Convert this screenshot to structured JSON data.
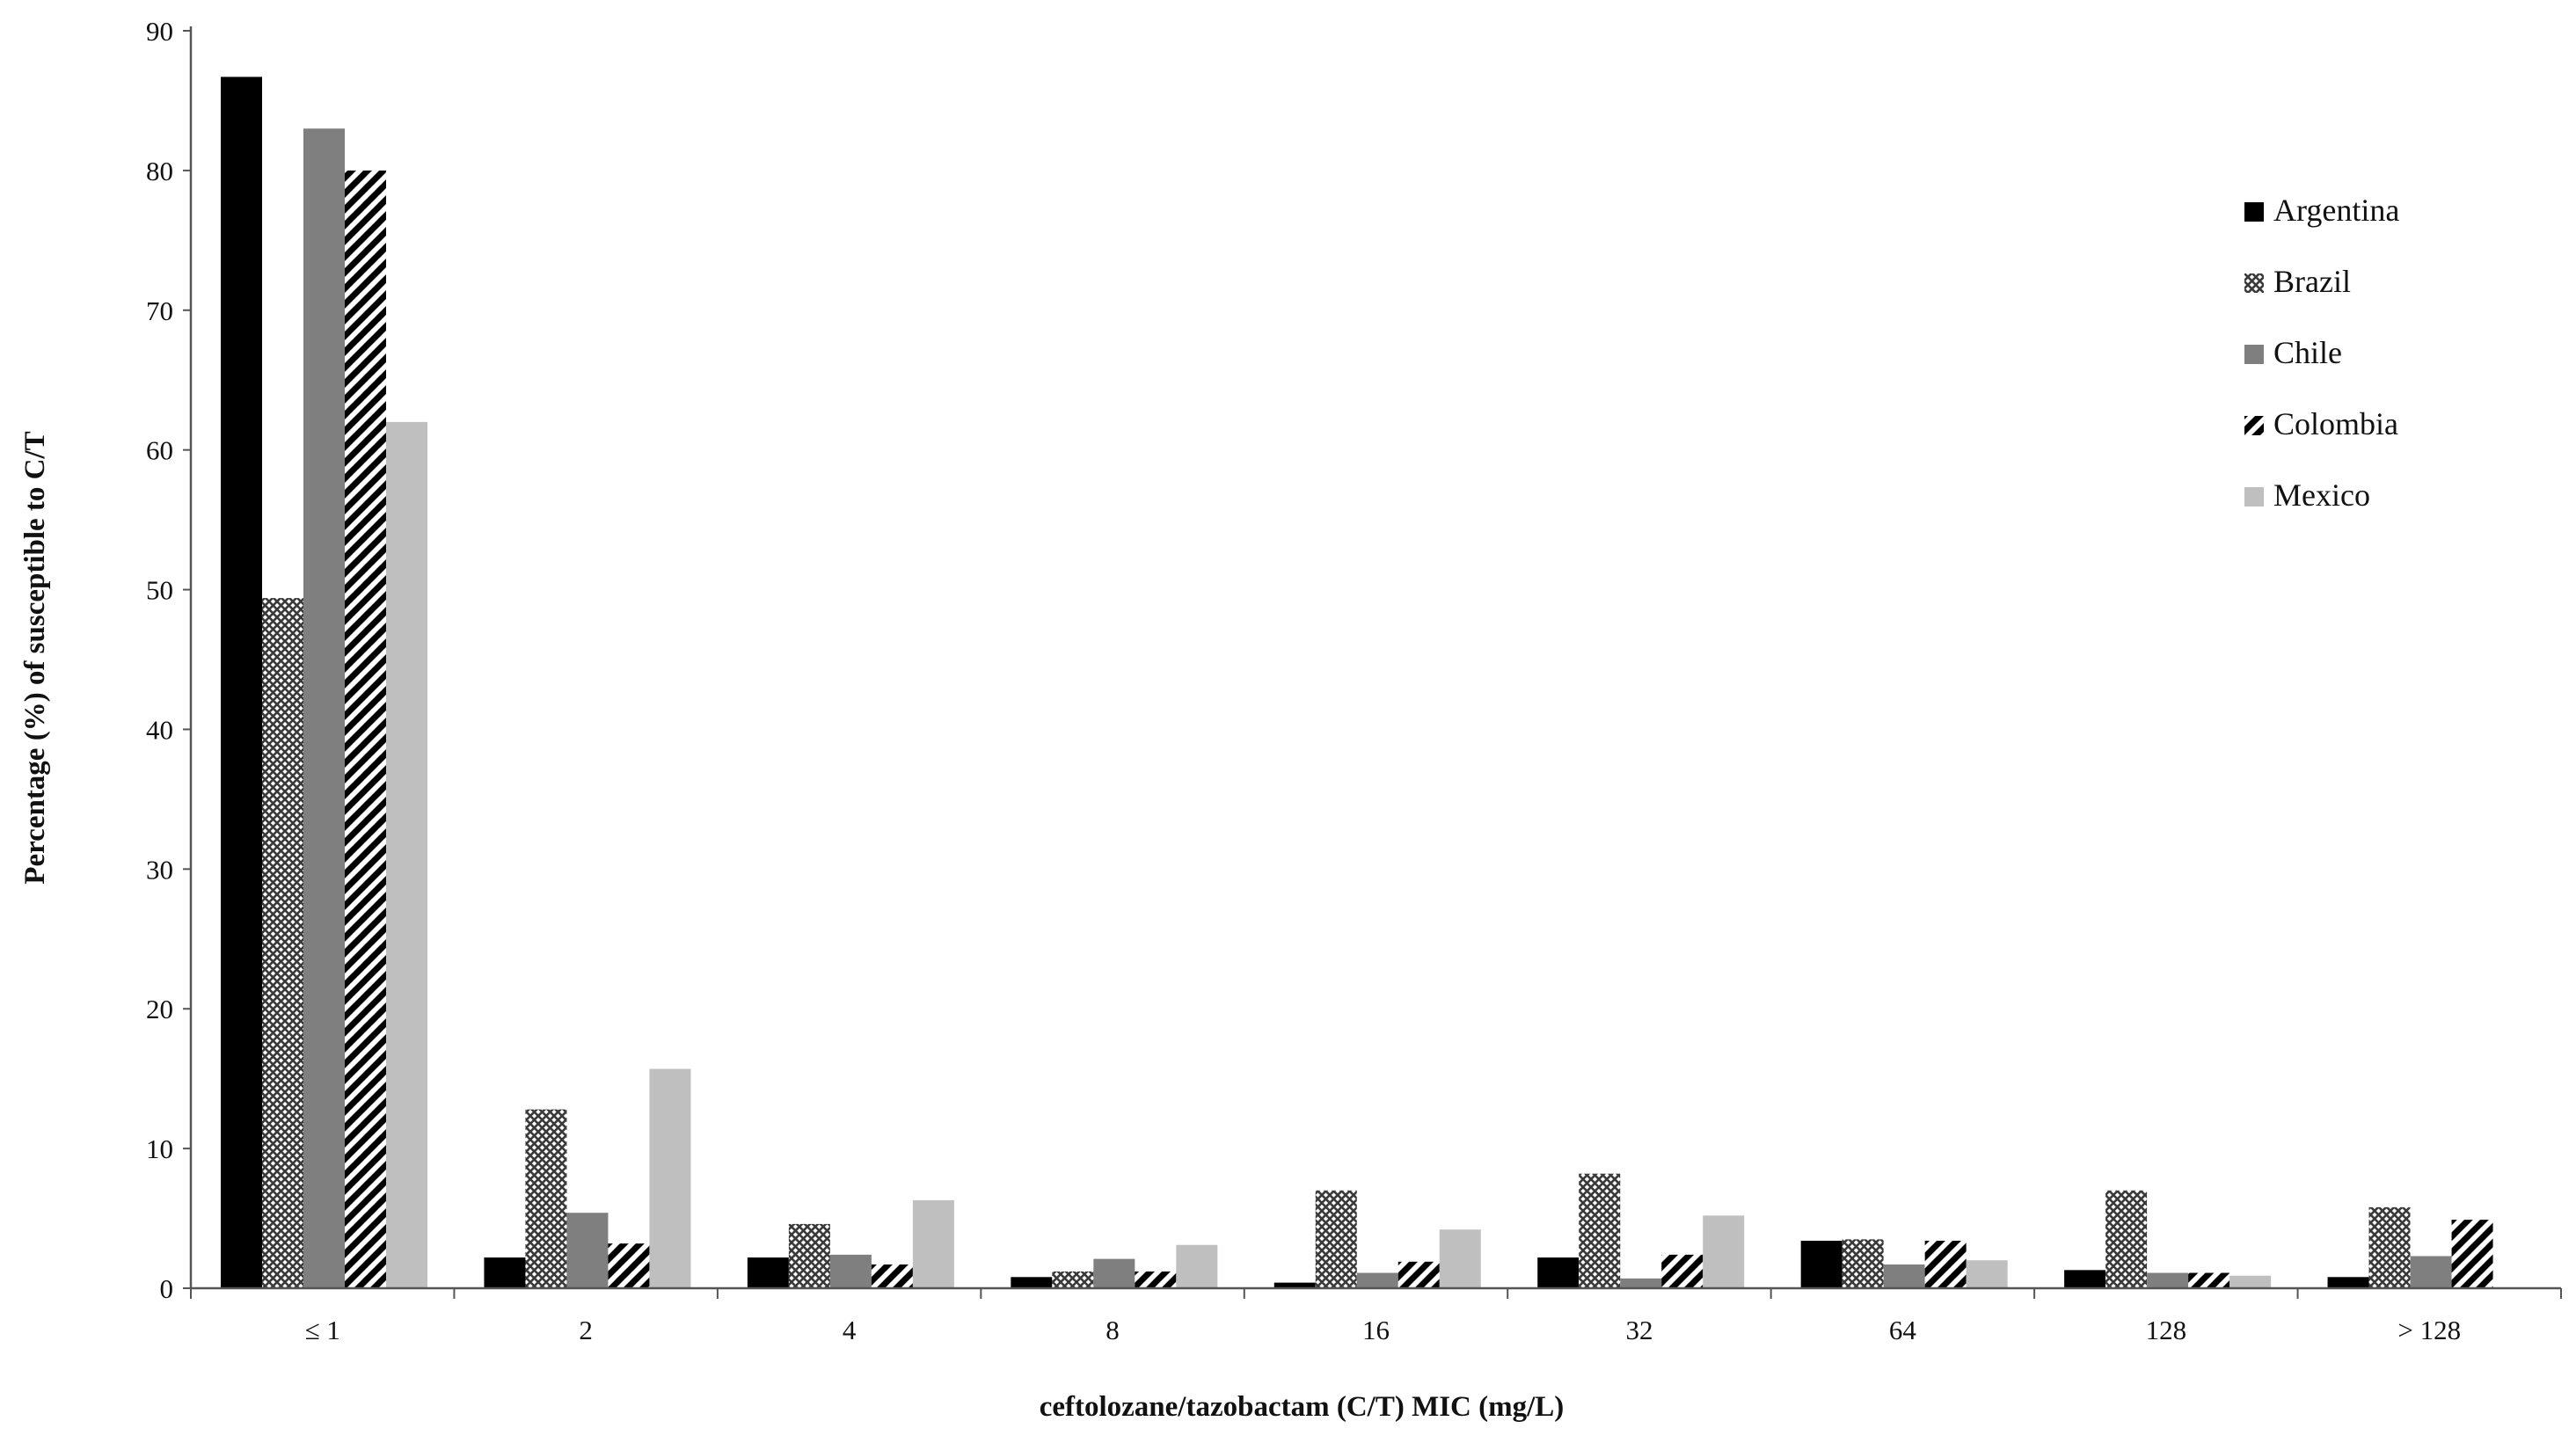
{
  "chart_data": {
    "type": "bar",
    "title": "",
    "xlabel": "ceftolozane/tazobactam (C/T) MIC (mg/L)",
    "ylabel": "Percentage (%) of susceptible to C/T",
    "ylim": [
      0,
      90
    ],
    "yticks": [
      "0",
      "10",
      "20",
      "30",
      "40",
      "50",
      "60",
      "70",
      "80",
      "90"
    ],
    "grid": false,
    "legend_position": "top-right",
    "categories": [
      "≤ 1",
      "2",
      "4",
      "8",
      "16",
      "32",
      "64",
      "128",
      "> 128"
    ],
    "series": [
      {
        "name": "Argentina",
        "fill": "solid",
        "color": "#000000",
        "values": [
          86.7,
          2.2,
          2.2,
          0.8,
          0.4,
          2.2,
          3.4,
          1.3,
          0.8
        ]
      },
      {
        "name": "Brazil",
        "fill": "crosshatch",
        "color": "#555555",
        "values": [
          49.4,
          12.8,
          4.6,
          1.2,
          7.0,
          8.2,
          3.5,
          7.0,
          5.8
        ]
      },
      {
        "name": "Chile",
        "fill": "solid",
        "color": "#7f7f7f",
        "values": [
          83.0,
          5.4,
          2.4,
          2.1,
          1.1,
          0.7,
          1.7,
          1.1,
          2.3
        ]
      },
      {
        "name": "Colombia",
        "fill": "diagonal-stripes",
        "color": "#000000",
        "values": [
          80.0,
          3.2,
          1.7,
          1.2,
          1.9,
          2.4,
          3.4,
          1.1,
          4.9
        ]
      },
      {
        "name": "Mexico",
        "fill": "solid",
        "color": "#bfbfbf",
        "values": [
          62.0,
          15.7,
          6.3,
          3.1,
          4.2,
          5.2,
          2.0,
          0.9,
          0.0
        ]
      }
    ]
  }
}
